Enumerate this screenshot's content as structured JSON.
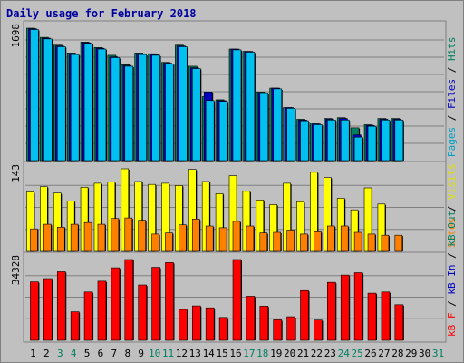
{
  "title": "Daily usage for February 2018",
  "chart_data": [
    {
      "type": "bar",
      "panel": "pages-files-hits",
      "ymax_label": "1698",
      "right_label_parts": [
        {
          "text": "Pages",
          "color": "#00a0c8"
        },
        {
          "text": " / ",
          "color": "#000000"
        },
        {
          "text": "Files",
          "color": "#0000c0"
        },
        {
          "text": " / ",
          "color": "#000000"
        },
        {
          "text": "Hits",
          "color": "#008060"
        }
      ],
      "categories": [
        "1",
        "2",
        "3",
        "4",
        "5",
        "6",
        "7",
        "8",
        "9",
        "10",
        "11",
        "12",
        "13",
        "14",
        "15",
        "16",
        "17",
        "18",
        "19",
        "20",
        "21",
        "22",
        "23",
        "24",
        "25",
        "26",
        "27",
        "28",
        "29",
        "30",
        "31"
      ],
      "series": [
        {
          "name": "Hits",
          "color": "#008060",
          "values": [
            1698,
            1580,
            1480,
            1380,
            1520,
            1450,
            1350,
            1230,
            1380,
            1370,
            1260,
            1480,
            1210,
            820,
            780,
            1430,
            1400,
            880,
            930,
            680,
            530,
            480,
            540,
            550,
            420,
            460,
            540,
            540,
            null,
            null,
            null
          ]
        },
        {
          "name": "Files",
          "color": "#0000c0",
          "values": [
            1690,
            1570,
            1470,
            1370,
            1510,
            1440,
            1330,
            1220,
            1370,
            1360,
            1250,
            1470,
            1190,
            880,
            770,
            1430,
            1400,
            870,
            930,
            680,
            520,
            470,
            530,
            540,
            330,
            450,
            530,
            530,
            null,
            null,
            null
          ]
        },
        {
          "name": "Pages",
          "color": "#00c0f0",
          "values": [
            1680,
            1560,
            1460,
            1360,
            1500,
            1430,
            1320,
            1210,
            1360,
            1350,
            1240,
            1460,
            1180,
            770,
            760,
            1420,
            1390,
            860,
            920,
            670,
            510,
            460,
            520,
            520,
            300,
            440,
            520,
            520,
            null,
            null,
            null
          ]
        }
      ]
    },
    {
      "type": "bar",
      "panel": "sites-visits",
      "ymax_label": "143",
      "right_label_parts": [
        {
          "text": "Sites",
          "color": "#ff8000"
        },
        {
          "text": " / ",
          "color": "#000000"
        },
        {
          "text": "Visits",
          "color": "#e0e000"
        }
      ],
      "categories": [
        "1",
        "2",
        "3",
        "4",
        "5",
        "6",
        "7",
        "8",
        "9",
        "10",
        "11",
        "12",
        "13",
        "14",
        "15",
        "16",
        "17",
        "18",
        "19",
        "20",
        "21",
        "22",
        "23",
        "24",
        "25",
        "26",
        "27",
        "28",
        "29",
        "30",
        "31"
      ],
      "series": [
        {
          "name": "Visits",
          "color": "#ffff00",
          "values": [
            103,
            112,
            101,
            87,
            111,
            118,
            120,
            143,
            121,
            116,
            118,
            114,
            142,
            121,
            100,
            131,
            104,
            89,
            81,
            118,
            86,
            137,
            128,
            92,
            72,
            110,
            82,
            null,
            null,
            null,
            null
          ]
        },
        {
          "name": "Sites",
          "color": "#ff8000",
          "values": [
            39,
            47,
            42,
            47,
            50,
            47,
            57,
            58,
            54,
            30,
            32,
            46,
            56,
            44,
            41,
            52,
            44,
            32,
            33,
            37,
            30,
            34,
            44,
            44,
            33,
            30,
            28,
            28,
            null,
            null,
            null
          ]
        }
      ]
    },
    {
      "type": "bar",
      "panel": "kbytes",
      "ymax_label": "34328",
      "right_label_parts": [
        {
          "text": "kB F",
          "color": "#ff0000"
        },
        {
          "text": " / ",
          "color": "#000000"
        },
        {
          "text": "kB In",
          "color": "#0000c0"
        },
        {
          "text": " / ",
          "color": "#000000"
        },
        {
          "text": "kB Out",
          "color": "#008060"
        }
      ],
      "categories": [
        "1",
        "2",
        "3",
        "4",
        "5",
        "6",
        "7",
        "8",
        "9",
        "10",
        "11",
        "12",
        "13",
        "14",
        "15",
        "16",
        "17",
        "18",
        "19",
        "20",
        "21",
        "22",
        "23",
        "24",
        "25",
        "26",
        "27",
        "28",
        "29",
        "30",
        "31"
      ],
      "series": [
        {
          "name": "kB F",
          "color": "#ff0000",
          "values": [
            24800,
            26200,
            29100,
            12100,
            20500,
            25100,
            30800,
            34300,
            23500,
            31000,
            33000,
            13100,
            14600,
            13800,
            9700,
            34300,
            18700,
            14500,
            8700,
            10000,
            21100,
            8600,
            24600,
            27700,
            28700,
            20000,
            20500,
            15100,
            null,
            null,
            null
          ]
        }
      ]
    }
  ],
  "x_labels": [
    {
      "text": "1",
      "color": "#000000"
    },
    {
      "text": "2",
      "color": "#000000"
    },
    {
      "text": "3",
      "color": "#008060"
    },
    {
      "text": "4",
      "color": "#008060"
    },
    {
      "text": "5",
      "color": "#000000"
    },
    {
      "text": "6",
      "color": "#000000"
    },
    {
      "text": "7",
      "color": "#000000"
    },
    {
      "text": "8",
      "color": "#000000"
    },
    {
      "text": "9",
      "color": "#000000"
    },
    {
      "text": "10",
      "color": "#008060"
    },
    {
      "text": "11",
      "color": "#008060"
    },
    {
      "text": "12",
      "color": "#000000"
    },
    {
      "text": "13",
      "color": "#000000"
    },
    {
      "text": "14",
      "color": "#000000"
    },
    {
      "text": "15",
      "color": "#000000"
    },
    {
      "text": "16",
      "color": "#000000"
    },
    {
      "text": "17",
      "color": "#008060"
    },
    {
      "text": "18",
      "color": "#008060"
    },
    {
      "text": "19",
      "color": "#000000"
    },
    {
      "text": "20",
      "color": "#000000"
    },
    {
      "text": "21",
      "color": "#000000"
    },
    {
      "text": "22",
      "color": "#000000"
    },
    {
      "text": "23",
      "color": "#000000"
    },
    {
      "text": "24",
      "color": "#008060"
    },
    {
      "text": "25",
      "color": "#008060"
    },
    {
      "text": "26",
      "color": "#000000"
    },
    {
      "text": "27",
      "color": "#000000"
    },
    {
      "text": "28",
      "color": "#000000"
    },
    {
      "text": "29",
      "color": "#000000"
    },
    {
      "text": "30",
      "color": "#000000"
    },
    {
      "text": "31",
      "color": "#008060"
    }
  ]
}
